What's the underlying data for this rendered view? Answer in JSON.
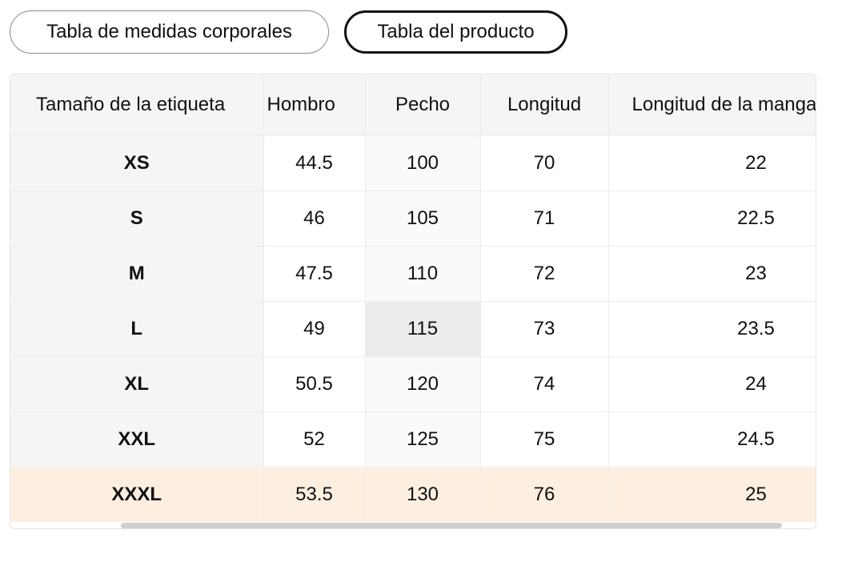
{
  "tabs": [
    {
      "label": "Tabla de medidas corporales",
      "active": false
    },
    {
      "label": "Tabla del producto",
      "active": true
    }
  ],
  "table": {
    "headers": [
      "Tamaño de la etiqueta",
      "Hombro",
      "Pecho",
      "Longitud",
      "Longitud de la manga"
    ],
    "rows": [
      [
        "XS",
        "44.5",
        "100",
        "70",
        "22"
      ],
      [
        "S",
        "46",
        "105",
        "71",
        "22.5"
      ],
      [
        "M",
        "47.5",
        "110",
        "72",
        "23"
      ],
      [
        "L",
        "49",
        "115",
        "73",
        "23.5"
      ],
      [
        "XL",
        "50.5",
        "120",
        "74",
        "24"
      ],
      [
        "XXL",
        "52",
        "125",
        "75",
        "24.5"
      ],
      [
        "XXXL",
        "53.5",
        "130",
        "76",
        "25"
      ]
    ],
    "highlight_row_color": "#fdefe0"
  }
}
